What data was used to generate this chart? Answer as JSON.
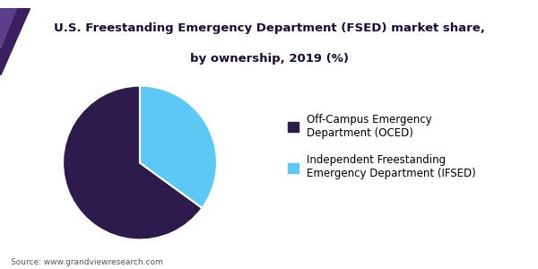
{
  "title_line1": "U.S. Freestanding Emergency Department (FSED) market share,",
  "title_line2": "by ownership, 2019 (%)",
  "slices": [
    65,
    35
  ],
  "colors": [
    "#2d1b4e",
    "#5bc8f5"
  ],
  "labels": [
    "Off-Campus Emergency\nDepartment (OCED)",
    "Independent Freestanding\nEmergency Department (IFSED)"
  ],
  "source": "Source: www.grandviewresearch.com",
  "startangle": 90,
  "header_bg_color": "#ffffff",
  "title_color": "#1a0a3c",
  "accent_line_color": "#5b4fa0",
  "triangle_color1": "#5b3d8a",
  "triangle_color2": "#3b1f5e",
  "background_color": "#ffffff",
  "legend_fontsize": 8.5,
  "title_fontsize": 9.5
}
